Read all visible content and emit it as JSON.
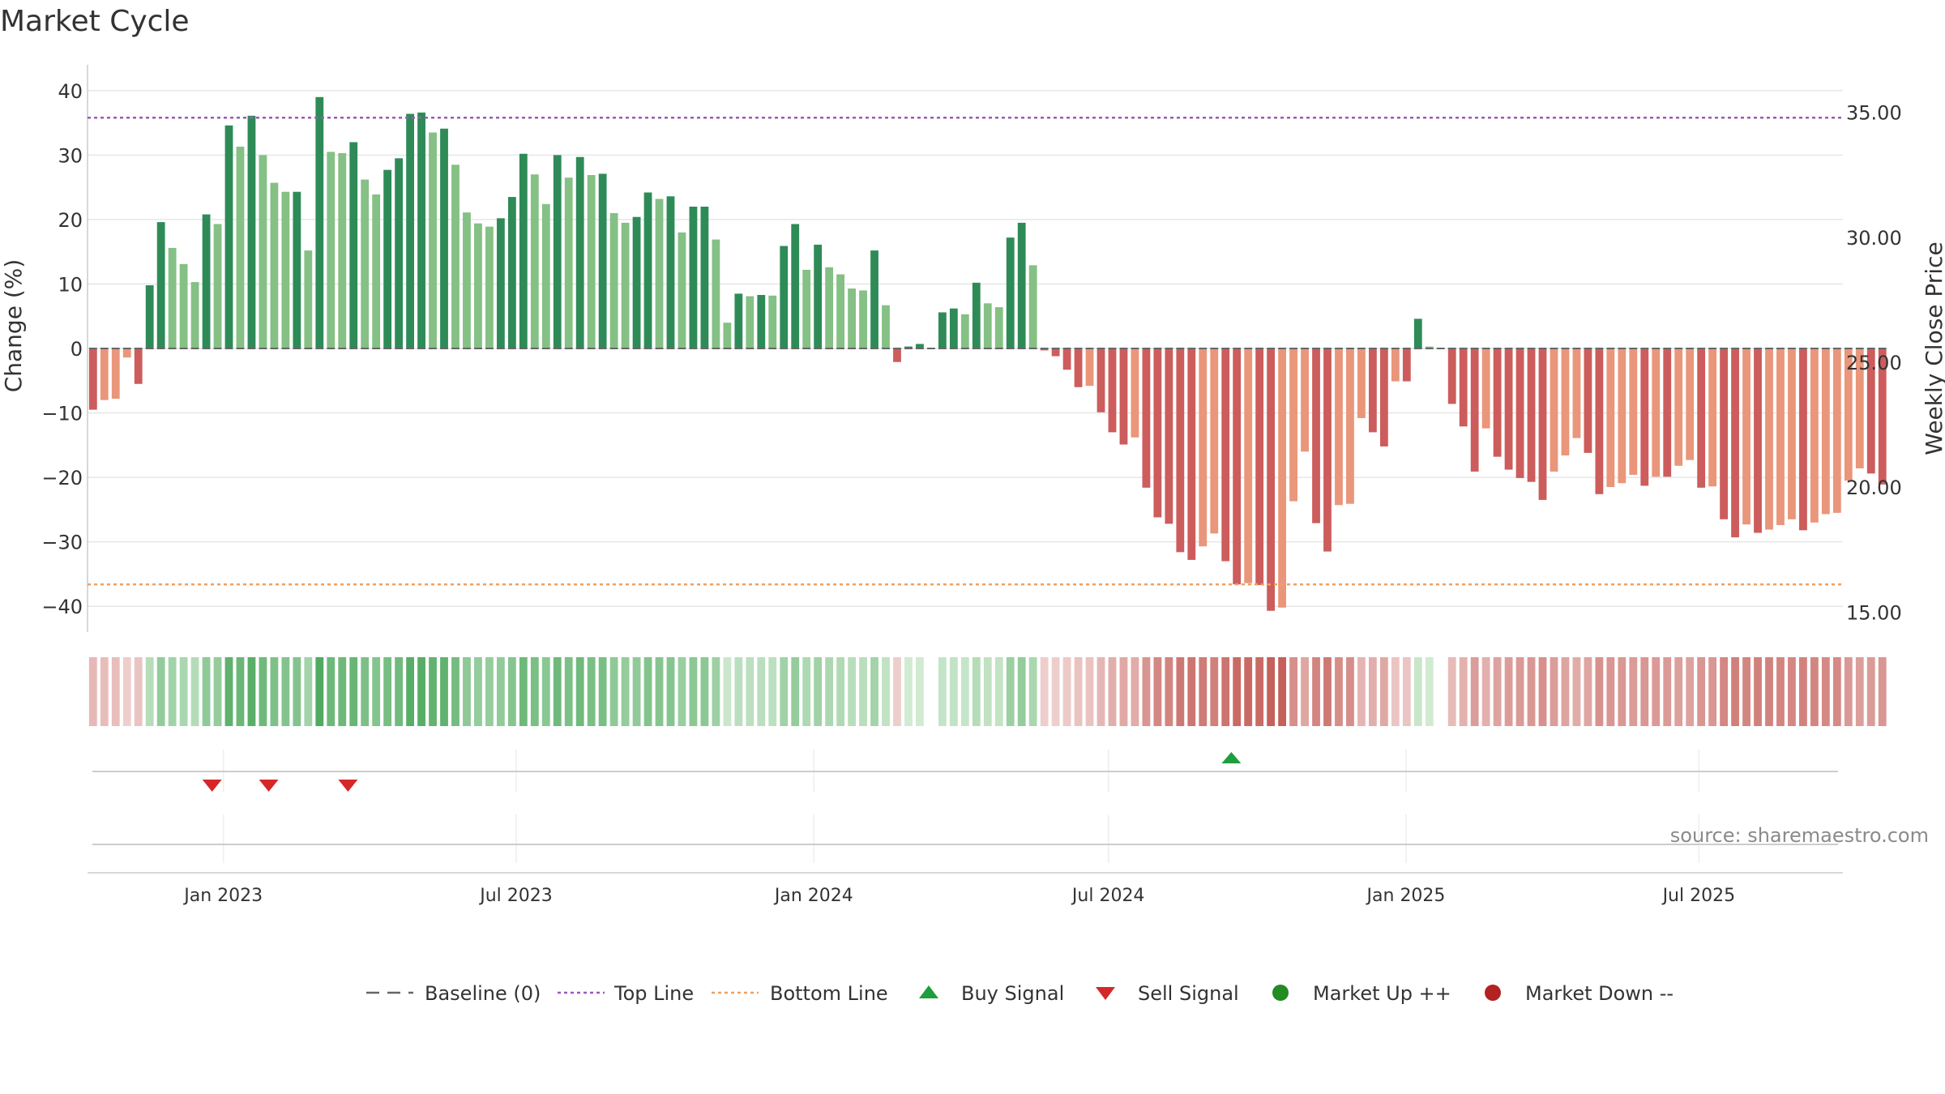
{
  "chart_data": {
    "type": "bar",
    "title": "Market Cycle",
    "ylabel": "Change (%)",
    "y2label": "Weekly Close Price",
    "ylim": [
      -44,
      44
    ],
    "yticks": [
      40,
      30,
      20,
      10,
      0,
      -10,
      -20,
      -30,
      -40
    ],
    "ytick_labels": [
      "40",
      "30",
      "20",
      "10",
      "0",
      "−10",
      "−20",
      "−30",
      "−40"
    ],
    "y2lim": [
      14.2,
      36.9
    ],
    "y2ticks": [
      35,
      30,
      25,
      20,
      15
    ],
    "y2tick_labels": [
      "35.00",
      "30.00",
      "25.00",
      "20.00",
      "15.00"
    ],
    "xlim": [
      "2022-10-09",
      "2025-09-28"
    ],
    "xticks": [
      "2023-01-01",
      "2023-07-01",
      "2024-01-01",
      "2024-07-01",
      "2025-01-01",
      "2025-07-01"
    ],
    "xtick_labels": [
      "Jan 2023",
      "Jul 2023",
      "Jan 2024",
      "Jul 2024",
      "Jan 2025",
      "Jul 2025"
    ],
    "first_week": "2022-10-09",
    "x_step_days": 7,
    "grid": true,
    "values": [
      -9.5,
      -8,
      -7.8,
      -1.4,
      -5.5,
      9.8,
      19.6,
      15.6,
      13.1,
      10.3,
      20.8,
      19.3,
      34.6,
      31.3,
      36.1,
      30,
      25.7,
      24.3,
      24.3,
      15.2,
      39,
      30.5,
      30.3,
      32,
      26.2,
      23.9,
      27.7,
      29.5,
      36.4,
      36.6,
      33.5,
      34.1,
      28.5,
      21.1,
      19.4,
      18.9,
      20.2,
      23.5,
      30.2,
      27,
      22.4,
      30,
      26.5,
      29.7,
      26.9,
      27.1,
      21,
      19.5,
      20.4,
      24.2,
      23.2,
      23.6,
      18,
      22,
      22,
      16.9,
      4,
      8.5,
      8.1,
      8.3,
      8.2,
      15.9,
      19.3,
      12.2,
      16.1,
      12.6,
      11.5,
      9.3,
      9,
      15.2,
      6.7,
      -2.1,
      0.3,
      0.7,
      0,
      5.6,
      6.2,
      5.3,
      10.2,
      7,
      6.4,
      17.2,
      19.5,
      12.9,
      -0.3,
      -1.2,
      -3.3,
      -6,
      -5.8,
      -9.9,
      -13,
      -14.9,
      -13.8,
      -21.6,
      -26.2,
      -27.2,
      -31.6,
      -32.8,
      -30.7,
      -28.7,
      -33,
      -36.6,
      -36.4,
      -36.7,
      -40.7,
      -40.2,
      -23.7,
      -16,
      -27.1,
      -31.5,
      -24.3,
      -24.1,
      -10.8,
      -13,
      -15.2,
      -5.1,
      -5.1,
      4.6,
      0.3,
      0,
      -8.6,
      -12.1,
      -19.1,
      -12.4,
      -16.8,
      -18.8,
      -20.1,
      -20.7,
      -23.5,
      -19.1,
      -16.6,
      -13.9,
      -16.2,
      -22.6,
      -21.5,
      -20.9,
      -19.6,
      -21.3,
      -19.9,
      -19.9,
      -18.2,
      -17.3,
      -21.6,
      -21.4,
      -26.5,
      -29.3,
      -27.3,
      -28.6,
      -28.1,
      -27.4,
      -26.5,
      -28.2,
      -27,
      -25.7,
      -25.5,
      -20.5,
      -18.6,
      -19.4,
      -21.1
    ],
    "top_line": 35.8,
    "bottom_line": -36.6,
    "baseline": 0,
    "buy_signals": [
      "2024-09-15"
    ],
    "sell_signals": [
      "2022-12-25",
      "2023-01-29",
      "2023-03-19"
    ],
    "source": "source: sharemaestro.com",
    "legend_position": "bottom",
    "legend": [
      {
        "label": "Baseline (0)",
        "symbol": "dash-gray"
      },
      {
        "label": "Top Line",
        "symbol": "dot-purple"
      },
      {
        "label": "Bottom Line",
        "symbol": "dot-orange"
      },
      {
        "label": "Buy Signal",
        "symbol": "triangle-up-green"
      },
      {
        "label": "Sell Signal",
        "symbol": "triangle-down-red"
      },
      {
        "label": "Market Up ++",
        "symbol": "circle-green"
      },
      {
        "label": "Market Down --",
        "symbol": "circle-red"
      }
    ],
    "colors": {
      "up_strong": "#2e8b57",
      "up_light": "#85c085",
      "down_strong": "#cd5c5c",
      "down_light": "#e9967a",
      "top_line": "#9b59b6",
      "bottom_line": "#f0a060",
      "baseline": "#666666",
      "buy_signal": "#1e9e3e",
      "sell_signal": "#d62728",
      "market_up": "#228b22",
      "market_down": "#b22222",
      "grid": "#e6e6e6"
    }
  }
}
